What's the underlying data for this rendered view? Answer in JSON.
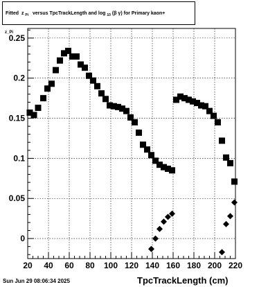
{
  "title": {
    "prefix": "Fitted",
    "var": "z",
    "var_sub": "Pi",
    "middle": "versus TpcTrackLength and log",
    "log_sub": "10",
    "beta_gamma": "(β γ)",
    "suffix": "for Primary kaon+"
  },
  "timestamp": "Sun Jun 29 08:06:34 2025",
  "ylabel_corner": "z_Pi",
  "chart_data": {
    "type": "scatter",
    "xlabel": "TpcTrackLength (cm)",
    "ylabel": "",
    "xlim": [
      20,
      220
    ],
    "ylim": [
      -0.025,
      0.262
    ],
    "xticks": [
      20,
      40,
      60,
      80,
      100,
      120,
      140,
      160,
      180,
      200,
      220
    ],
    "yticks": [
      0,
      0.05,
      0.1,
      0.15,
      0.2,
      0.25
    ],
    "ytick_labels": [
      "0",
      "0.05",
      "0.1",
      "0.15",
      "0.2",
      "0.25"
    ],
    "grid": true,
    "series": [
      {
        "marker": "square",
        "color": "#000000",
        "points": [
          [
            22,
            0.157
          ],
          [
            26,
            0.154
          ],
          [
            30,
            0.163
          ],
          [
            35,
            0.175
          ],
          [
            39,
            0.187
          ],
          [
            43,
            0.193
          ],
          [
            47,
            0.21
          ],
          [
            51,
            0.222
          ],
          [
            55,
            0.231
          ],
          [
            59,
            0.234
          ],
          [
            63,
            0.227
          ],
          [
            67,
            0.227
          ],
          [
            71,
            0.217
          ],
          [
            75,
            0.213
          ],
          [
            79,
            0.203
          ],
          [
            83,
            0.197
          ],
          [
            87,
            0.19
          ],
          [
            91,
            0.181
          ],
          [
            95,
            0.174
          ],
          [
            99,
            0.166
          ],
          [
            103,
            0.165
          ],
          [
            107,
            0.164
          ],
          [
            111,
            0.162
          ],
          [
            115,
            0.159
          ],
          [
            119,
            0.151
          ],
          [
            123,
            0.145
          ],
          [
            127,
            0.132
          ],
          [
            131,
            0.117
          ],
          [
            135,
            0.111
          ],
          [
            139,
            0.104
          ],
          [
            143,
            0.097
          ],
          [
            147,
            0.092
          ],
          [
            151,
            0.089
          ],
          [
            155,
            0.087
          ],
          [
            159,
            0.085
          ],
          [
            163,
            0.173
          ],
          [
            167,
            0.177
          ],
          [
            171,
            0.175
          ],
          [
            175,
            0.173
          ],
          [
            179,
            0.171
          ],
          [
            183,
            0.169
          ],
          [
            187,
            0.166
          ],
          [
            191,
            0.165
          ],
          [
            195,
            0.159
          ],
          [
            199,
            0.153
          ],
          [
            203,
            0.145
          ],
          [
            207,
            0.122
          ],
          [
            211,
            0.101
          ],
          [
            215,
            0.094
          ],
          [
            219,
            0.071
          ]
        ]
      },
      {
        "marker": "diamond",
        "color": "#000000",
        "points": [
          [
            139,
            -0.013
          ],
          [
            143,
            0.0
          ],
          [
            147,
            0.012
          ],
          [
            151,
            0.021
          ],
          [
            155,
            0.027
          ],
          [
            159,
            0.031
          ],
          [
            207,
            -0.017
          ],
          [
            211,
            0.018
          ],
          [
            215,
            0.028
          ],
          [
            219,
            0.045
          ]
        ]
      }
    ]
  }
}
